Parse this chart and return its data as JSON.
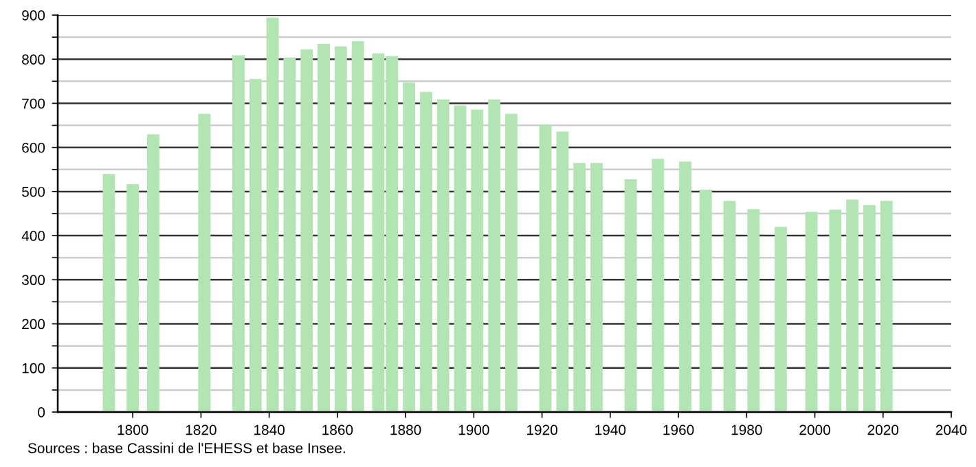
{
  "chart_data": {
    "type": "bar",
    "x": [
      1793,
      1800,
      1806,
      1821,
      1831,
      1836,
      1841,
      1846,
      1851,
      1856,
      1861,
      1866,
      1872,
      1876,
      1881,
      1886,
      1891,
      1896,
      1901,
      1906,
      1911,
      1921,
      1926,
      1931,
      1936,
      1946,
      1954,
      1962,
      1968,
      1975,
      1982,
      1990,
      1999,
      2006,
      2011,
      2016,
      2021
    ],
    "values": [
      540,
      517,
      630,
      676,
      809,
      755,
      894,
      804,
      822,
      835,
      829,
      841,
      813,
      807,
      747,
      726,
      709,
      695,
      686,
      709,
      676,
      652,
      636,
      565,
      565,
      528,
      574,
      568,
      504,
      479,
      460,
      420,
      454,
      459,
      482,
      469,
      479
    ],
    "color": "#b3e4b3",
    "xlim": [
      1778,
      2040
    ],
    "xticks": [
      1800,
      1820,
      1840,
      1860,
      1880,
      1900,
      1920,
      1940,
      1960,
      1980,
      2000,
      2020,
      2040
    ],
    "ylim": [
      0,
      900
    ],
    "yticks": [
      0,
      {
        "value": 50,
        "label": null
      },
      100,
      {
        "value": 150,
        "label": null
      },
      200,
      {
        "value": 250,
        "label": null
      },
      300,
      {
        "value": 350,
        "label": null
      },
      400,
      {
        "value": 450,
        "label": null
      },
      500,
      {
        "value": 550,
        "label": null
      },
      600,
      {
        "value": 650,
        "label": null
      },
      700,
      {
        "value": 750,
        "label": null
      },
      800,
      {
        "value": 850,
        "label": null
      },
      900
    ],
    "grid": "y",
    "annotations": [
      "Sources : base Cassini de l'EHESS et base Insee."
    ]
  }
}
